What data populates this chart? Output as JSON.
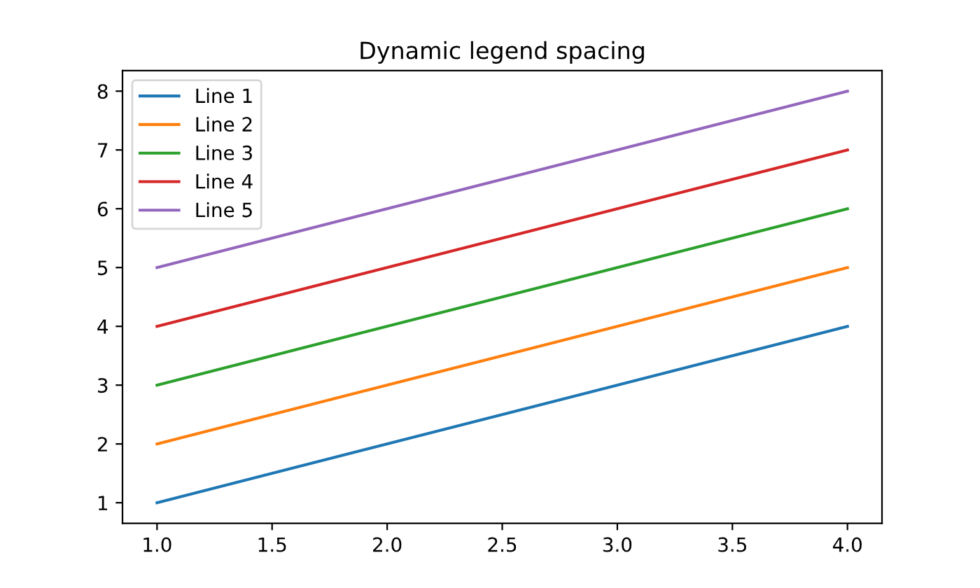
{
  "chart_data": {
    "type": "line",
    "title": "Dynamic legend spacing",
    "x": [
      1,
      4
    ],
    "series": [
      {
        "name": "Line 1",
        "color": "#1f77b4",
        "values": [
          1,
          4
        ]
      },
      {
        "name": "Line 2",
        "color": "#ff7f0e",
        "values": [
          2,
          5
        ]
      },
      {
        "name": "Line 3",
        "color": "#2ca02c",
        "values": [
          3,
          6
        ]
      },
      {
        "name": "Line 4",
        "color": "#d62728",
        "values": [
          4,
          7
        ]
      },
      {
        "name": "Line 5",
        "color": "#9467bd",
        "values": [
          5,
          8
        ]
      }
    ],
    "xlim": [
      0.85,
      4.15
    ],
    "ylim": [
      0.65,
      8.35
    ],
    "xticks": [
      {
        "value": 1,
        "label": "1.0"
      },
      {
        "value": 1.5,
        "label": "1.5"
      },
      {
        "value": 2,
        "label": "2.0"
      },
      {
        "value": 2.5,
        "label": "2.5"
      },
      {
        "value": 3,
        "label": "3.0"
      },
      {
        "value": 3.5,
        "label": "3.5"
      },
      {
        "value": 4,
        "label": "4.0"
      }
    ],
    "yticks": [
      1,
      2,
      3,
      4,
      5,
      6,
      7,
      8
    ],
    "legend": "top left",
    "grid": false,
    "marker": "none",
    "line_style": "solid"
  }
}
